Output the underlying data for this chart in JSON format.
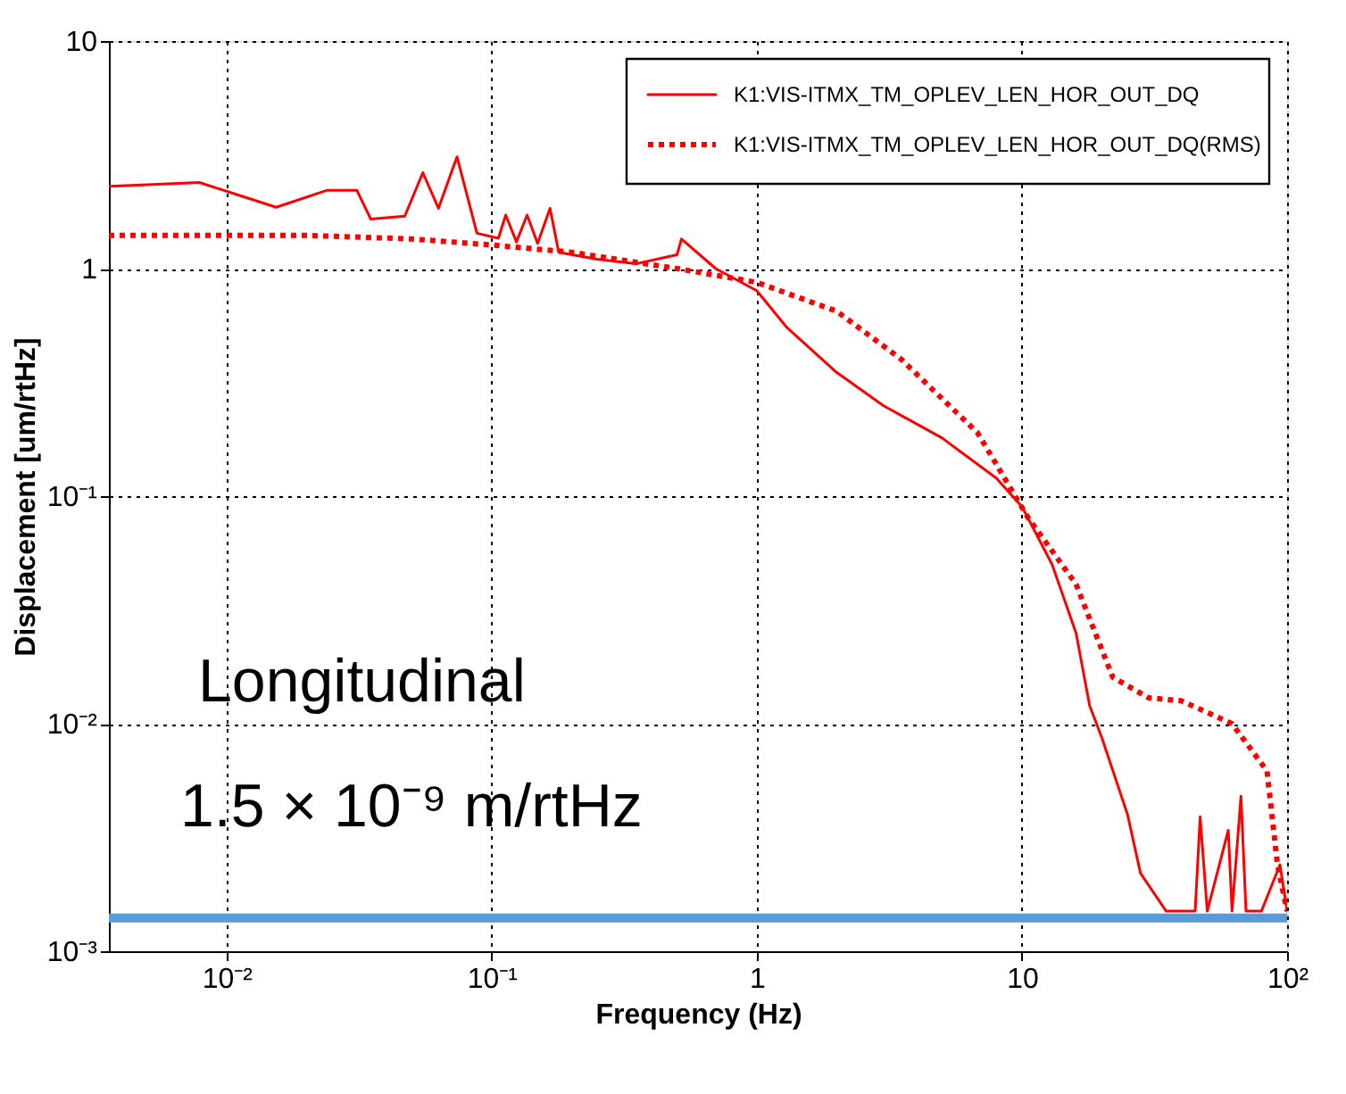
{
  "chart_data": {
    "type": "line",
    "xlabel": "Frequency (Hz)",
    "ylabel": "Displacement [um/rtHz]",
    "log": "xy",
    "xlim": [
      0.0036,
      100
    ],
    "ylim": [
      0.001,
      10
    ],
    "xticks": [
      {
        "value": 0.01,
        "label": "10⁻²"
      },
      {
        "value": 0.1,
        "label": "10⁻¹"
      },
      1,
      10,
      {
        "value": 100,
        "label": "10²"
      }
    ],
    "yticks": [
      {
        "value": 0.001,
        "label": "10⁻³"
      },
      {
        "value": 0.01,
        "label": "10⁻²"
      },
      {
        "value": 0.1,
        "label": "10⁻¹"
      },
      1,
      10
    ],
    "grid": true,
    "legend": "top right",
    "series": [
      {
        "name": "K1:VIS-ITMX_TM_OPLEV_LEN_HOR_OUT_DQ",
        "color": "#ff0000",
        "line_style": "solid",
        "x": [
          0.0036,
          0.004,
          0.0079,
          0.0154,
          0.024,
          0.031,
          0.035,
          0.047,
          0.055,
          0.063,
          0.074,
          0.088,
          0.106,
          0.113,
          0.124,
          0.136,
          0.149,
          0.166,
          0.179,
          0.25,
          0.35,
          0.5,
          0.52,
          0.7,
          1,
          1.3,
          2,
          3,
          5,
          8,
          10,
          13,
          16,
          18,
          20,
          25,
          28,
          35,
          45,
          47,
          50,
          60,
          62,
          67,
          70,
          80,
          94,
          100
        ],
        "values": [
          2.3,
          2.31,
          2.39,
          1.86,
          2.21,
          2.21,
          1.65,
          1.7,
          2.64,
          1.84,
          3.1,
          1.43,
          1.36,
          1.72,
          1.31,
          1.72,
          1.29,
          1.84,
          1.18,
          1.1,
          1.05,
          1.15,
          1.35,
          1.0,
          0.8,
          0.55,
          0.35,
          0.25,
          0.18,
          0.12,
          0.09,
          0.05,
          0.025,
          0.012,
          0.0087,
          0.004,
          0.0022,
          0.0015,
          0.0015,
          0.0039,
          0.0015,
          0.0034,
          0.0015,
          0.0048,
          0.0015,
          0.0015,
          0.0024,
          0.0015
        ]
      },
      {
        "name": "K1:VIS-ITMX_TM_OPLEV_LEN_HOR_OUT_DQ(RMS)",
        "color": "#ff0000",
        "line_style": "dotted",
        "x": [
          0.0036,
          0.02,
          0.05,
          0.1,
          0.2,
          0.5,
          1,
          2,
          3.5,
          6.8,
          10.5,
          16,
          22,
          30,
          40,
          62,
          84,
          92,
          100
        ],
        "values": [
          1.4,
          1.4,
          1.35,
          1.27,
          1.18,
          1.0,
          0.87,
          0.65,
          0.4,
          0.19,
          0.081,
          0.041,
          0.016,
          0.013,
          0.0126,
          0.01,
          0.0062,
          0.0024,
          0.0015
        ]
      }
    ],
    "ref_lines": [
      {
        "axis": "y",
        "value": 0.0014,
        "color": "#5b9bd5"
      }
    ],
    "annotations": [
      "Longitudinal",
      "1.5 × 10⁻⁹ m/rtHz"
    ]
  }
}
